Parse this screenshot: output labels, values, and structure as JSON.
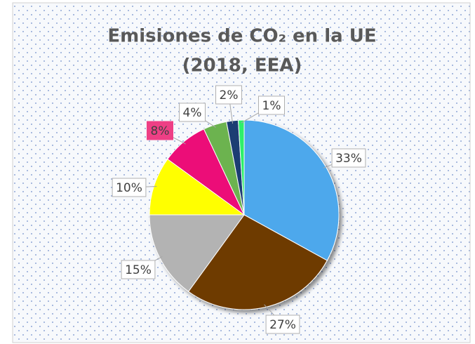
{
  "chart_data": {
    "type": "pie",
    "title": [
      "Emisiones de CO₂ en la UE",
      "(2018, EEA)"
    ],
    "values": [
      33,
      27,
      15,
      10,
      8,
      4,
      2,
      1
    ],
    "value_labels": [
      "33%",
      "27%",
      "15%",
      "10%",
      "8%",
      "4%",
      "2%",
      "1%"
    ],
    "colors": [
      "#4ea8ec",
      "#6e3b06",
      "#b3b3b3",
      "#ffff00",
      "#ec0a78",
      "#6cb350",
      "#1f3c73",
      "#2fef6a"
    ],
    "highlight_label": 4
  }
}
